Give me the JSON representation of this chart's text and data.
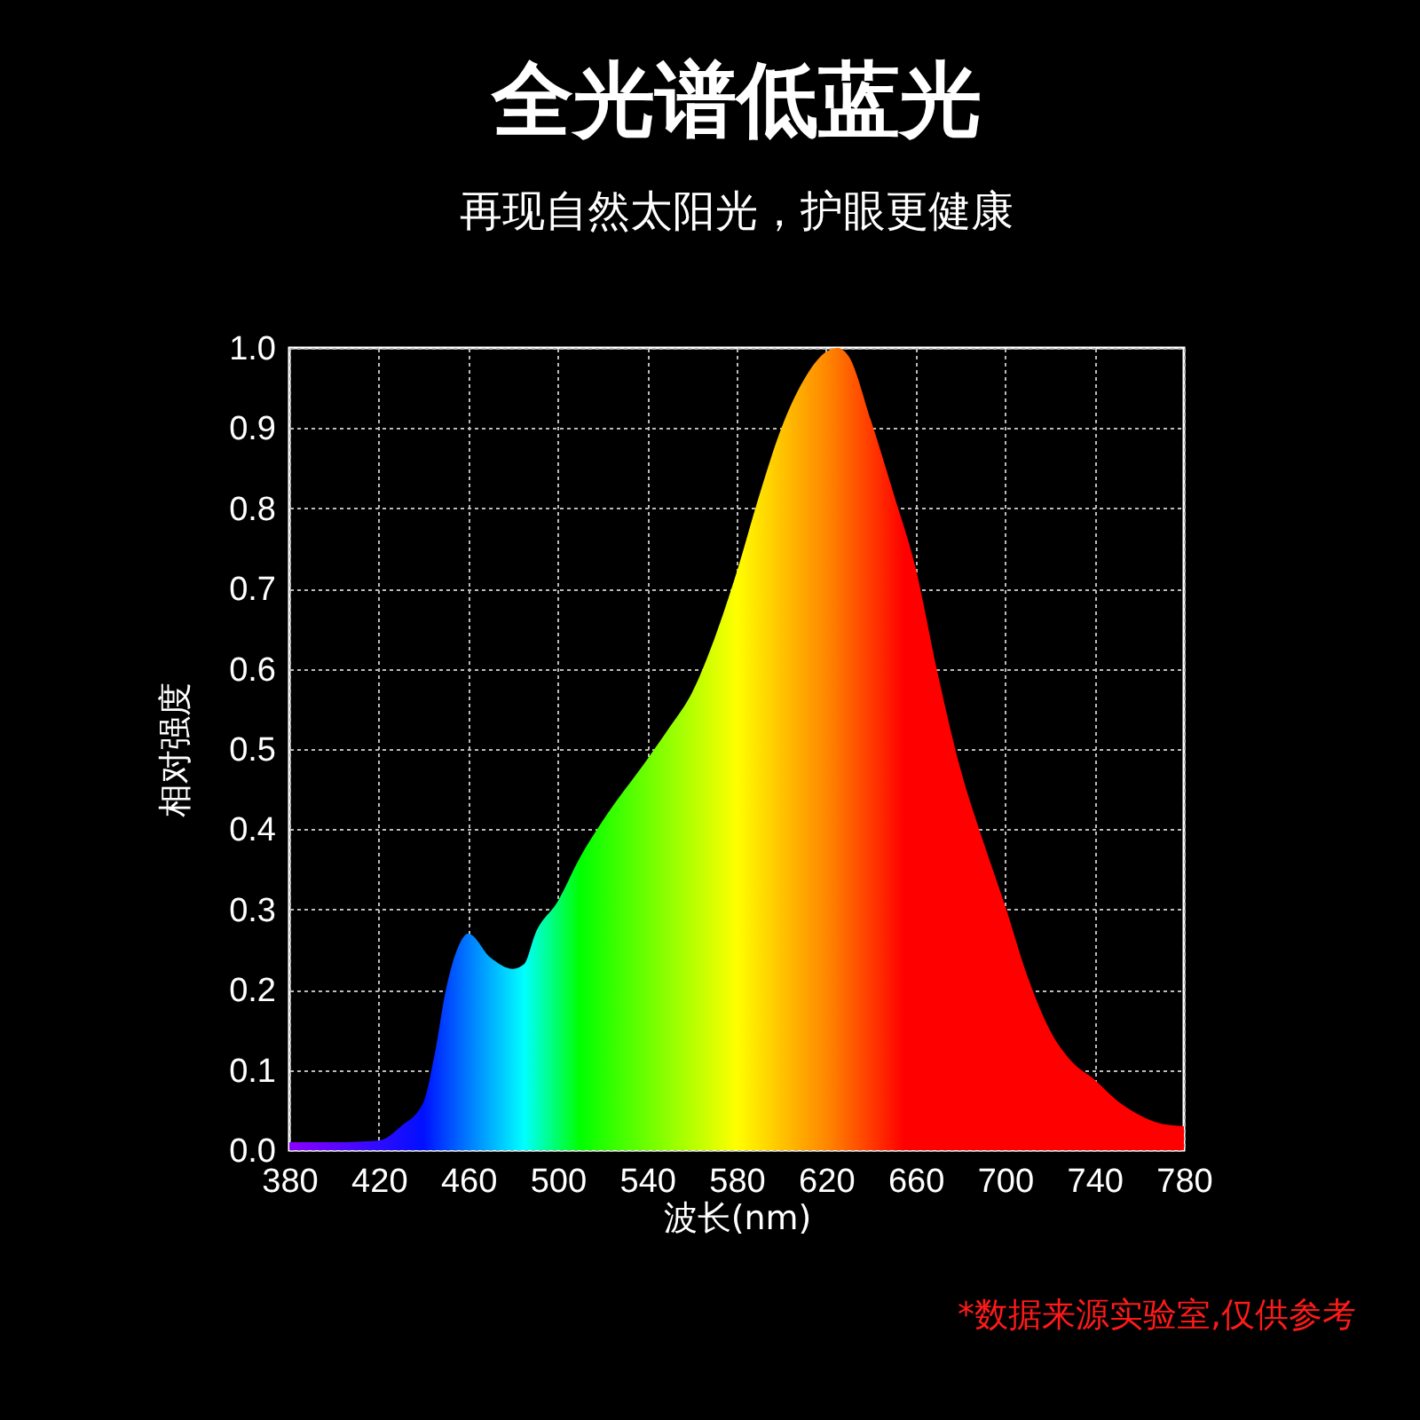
{
  "chart_data": {
    "type": "area",
    "title": "全光谱低蓝光",
    "subtitle": "再现自然太阳光，护眼更健康",
    "xlabel": "波长(nm)",
    "ylabel": "相对强度",
    "annotations": [
      "*数据来源实验室,仅供参考"
    ],
    "x": [
      380,
      400,
      420,
      430,
      440,
      445,
      450,
      455,
      460,
      470,
      480,
      485,
      490,
      500,
      510,
      520,
      540,
      550,
      560,
      570,
      580,
      590,
      600,
      610,
      620,
      625,
      630,
      640,
      650,
      660,
      670,
      680,
      690,
      700,
      710,
      720,
      730,
      740,
      750,
      760,
      770,
      780
    ],
    "series": [
      {
        "values": [
          0.01,
          0.01,
          0.012,
          0.03,
          0.06,
          0.12,
          0.2,
          0.25,
          0.27,
          0.24,
          0.226,
          0.232,
          0.27,
          0.31,
          0.365,
          0.41,
          0.487,
          0.527,
          0.57,
          0.637,
          0.72,
          0.815,
          0.9,
          0.96,
          0.995,
          1.0,
          0.99,
          0.91,
          0.82,
          0.726,
          0.593,
          0.476,
          0.387,
          0.305,
          0.217,
          0.15,
          0.11,
          0.088,
          0.062,
          0.044,
          0.033,
          0.03
        ]
      }
    ],
    "xlim": [
      380,
      780
    ],
    "xticks": [
      380,
      420,
      460,
      500,
      540,
      580,
      620,
      660,
      700,
      740,
      780
    ],
    "ylim": [
      0,
      1
    ],
    "yticks": [
      {
        "value": 0,
        "label": "0.0"
      },
      0.1,
      0.2,
      0.3,
      0.4,
      0.5,
      0.6,
      0.7,
      0.8,
      0.9,
      {
        "value": 1,
        "label": "1.0"
      }
    ],
    "grid": true
  }
}
